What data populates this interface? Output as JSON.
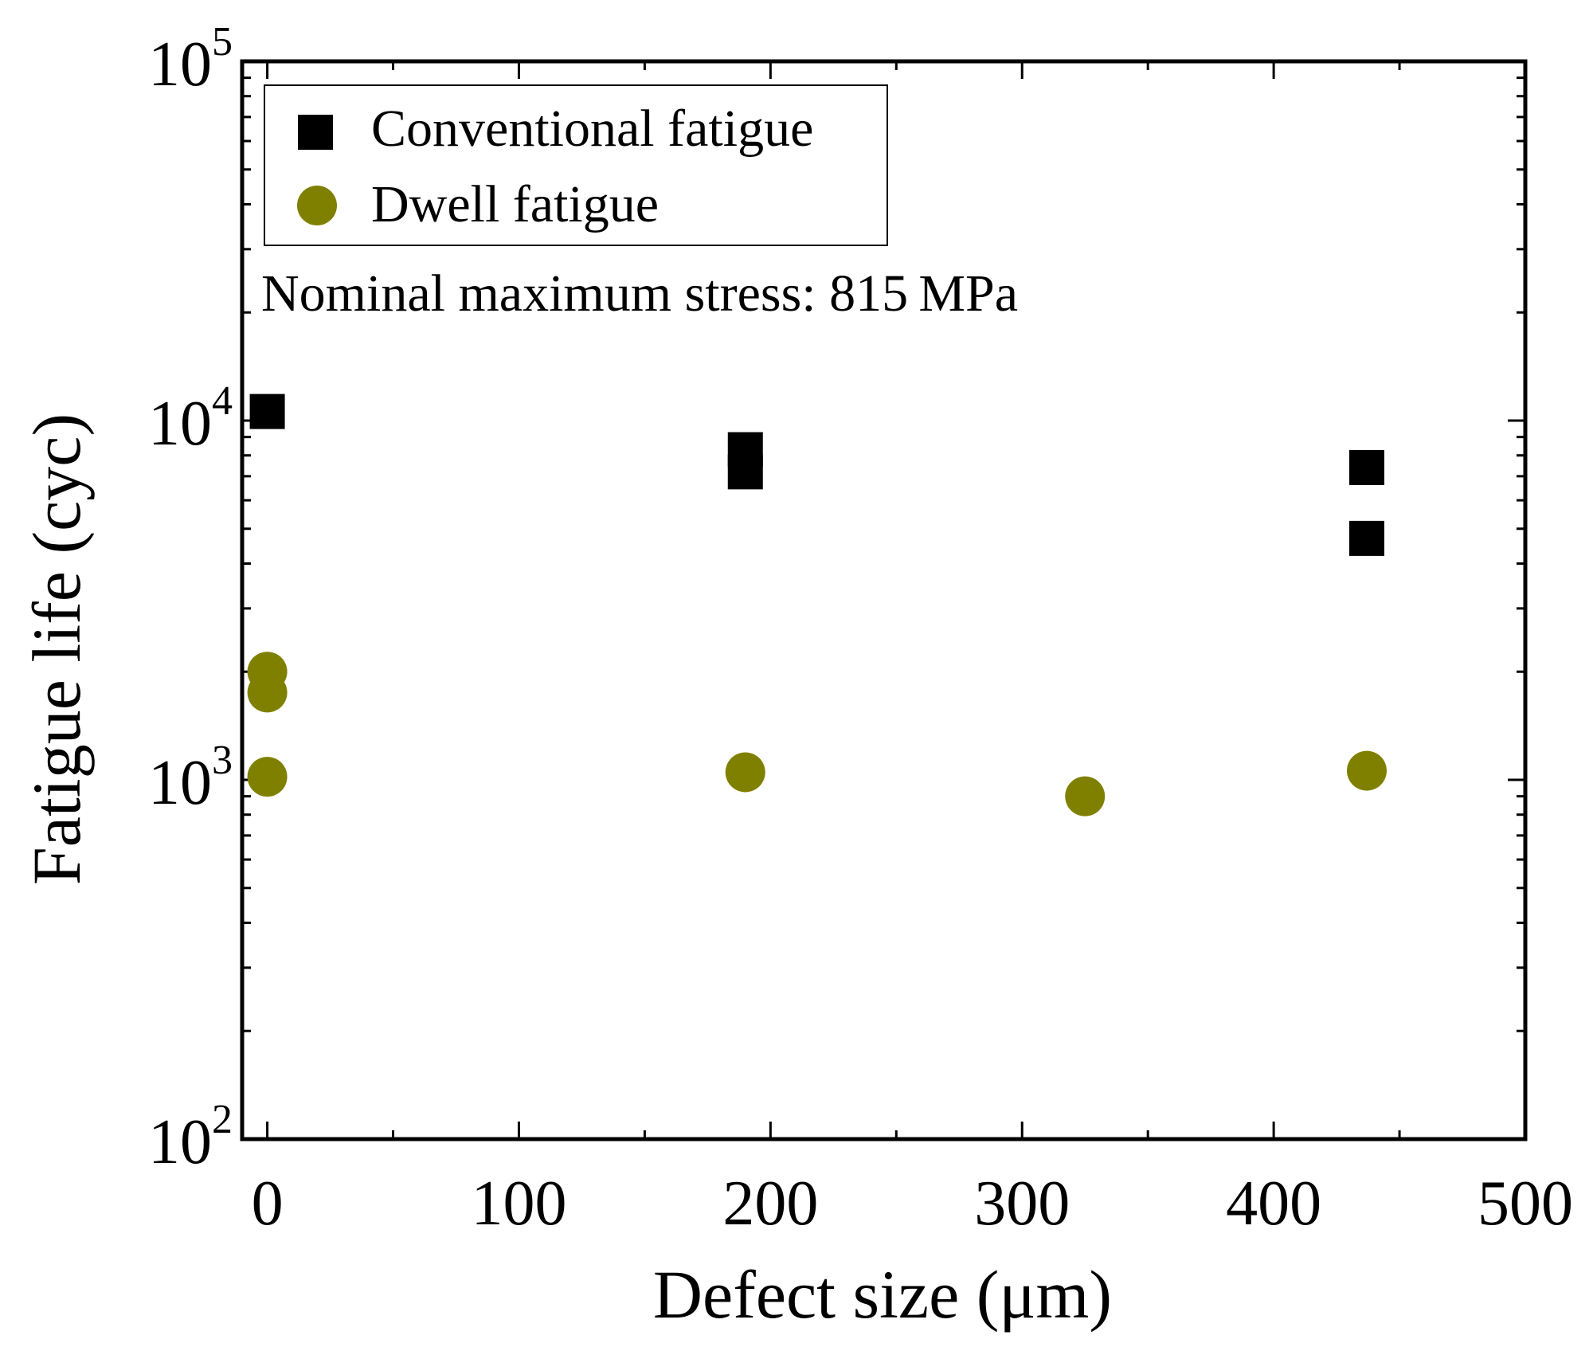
{
  "chart_data": {
    "type": "scatter",
    "title": "",
    "annotation": "Nominal maximum stress: 815 MPa",
    "xlabel": "Defect size (μm)",
    "ylabel": "Fatigue life (cyc)",
    "xlim": [
      -10,
      500
    ],
    "ylim": [
      100,
      100000
    ],
    "yscale": "log",
    "x_ticks": [
      0,
      100,
      200,
      300,
      400,
      500
    ],
    "x_tick_labels": [
      "0",
      "100",
      "200",
      "300",
      "400",
      "500"
    ],
    "y_ticks": [
      100,
      1000,
      10000,
      100000
    ],
    "y_tick_labels": [
      {
        "base": "10",
        "exp": "2"
      },
      {
        "base": "10",
        "exp": "3"
      },
      {
        "base": "10",
        "exp": "4"
      },
      {
        "base": "10",
        "exp": "5"
      }
    ],
    "legend_position": "top-left",
    "series": [
      {
        "name": "Conventional fatigue",
        "marker": "square",
        "color": "#000000",
        "points": [
          {
            "x": 0,
            "y": 10600
          },
          {
            "x": 190,
            "y": 8300
          },
          {
            "x": 190,
            "y": 7200
          },
          {
            "x": 437,
            "y": 7400
          },
          {
            "x": 437,
            "y": 4700
          }
        ]
      },
      {
        "name": "Dwell fatigue",
        "marker": "circle",
        "color": "#808000",
        "points": [
          {
            "x": 0,
            "y": 2000
          },
          {
            "x": 0,
            "y": 1750
          },
          {
            "x": 0,
            "y": 1020
          },
          {
            "x": 190,
            "y": 1050
          },
          {
            "x": 325,
            "y": 900
          },
          {
            "x": 437,
            "y": 1060
          }
        ]
      }
    ]
  }
}
